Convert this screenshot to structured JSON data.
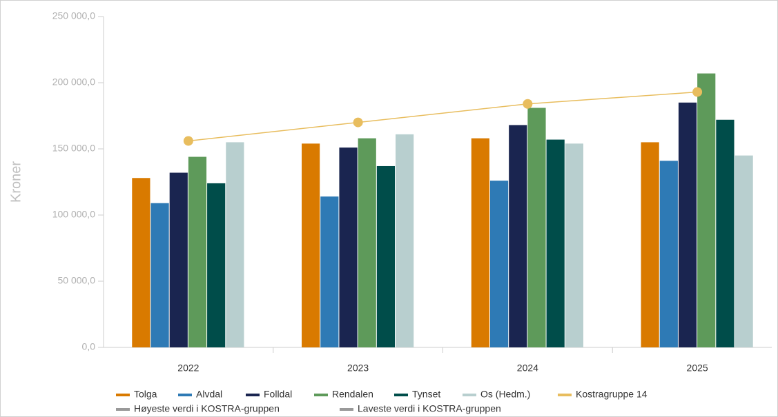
{
  "chart_data": {
    "type": "bar",
    "y_label": "Kroner",
    "categories": [
      "2022",
      "2023",
      "2024",
      "2025"
    ],
    "series": [
      {
        "name": "Tolga",
        "color": "#d97a00",
        "values": [
          128000,
          154000,
          158000,
          155000
        ]
      },
      {
        "name": "Alvdal",
        "color": "#2e7ab5",
        "values": [
          109000,
          114000,
          126000,
          141000
        ]
      },
      {
        "name": "Folldal",
        "color": "#1a2550",
        "values": [
          132000,
          151000,
          168000,
          185000
        ]
      },
      {
        "name": "Rendalen",
        "color": "#5e9a5a",
        "values": [
          144000,
          158000,
          181000,
          207000
        ]
      },
      {
        "name": "Tynset",
        "color": "#004d4a",
        "values": [
          124000,
          137000,
          157000,
          172000
        ]
      },
      {
        "name": "Os (Hedm.)",
        "color": "#b8cfcf",
        "values": [
          155000,
          161000,
          154000,
          145000
        ]
      },
      {
        "name": "Kostragruppe 14",
        "color": "#e8bd5e",
        "type": "line",
        "values": [
          156000,
          170000,
          184000,
          193000
        ]
      },
      {
        "name": "Høyeste verdi i KOSTRA-gruppen",
        "color": "#999999",
        "type": "line",
        "values": [
          null,
          null,
          null,
          null
        ]
      },
      {
        "name": "Laveste verdi i KOSTRA-gruppen",
        "color": "#999999",
        "type": "line",
        "values": [
          null,
          null,
          null,
          null
        ]
      }
    ],
    "ylim": [
      0,
      250000
    ],
    "yticks": [
      {
        "value": 0,
        "label": "0,0"
      },
      {
        "value": 50000,
        "label": "50 000,0"
      },
      {
        "value": 100000,
        "label": "100 000,0"
      },
      {
        "value": 150000,
        "label": "150 000,0"
      },
      {
        "value": 200000,
        "label": "200 000,0"
      },
      {
        "value": 250000,
        "label": "250 000,0"
      }
    ],
    "grid": false
  }
}
